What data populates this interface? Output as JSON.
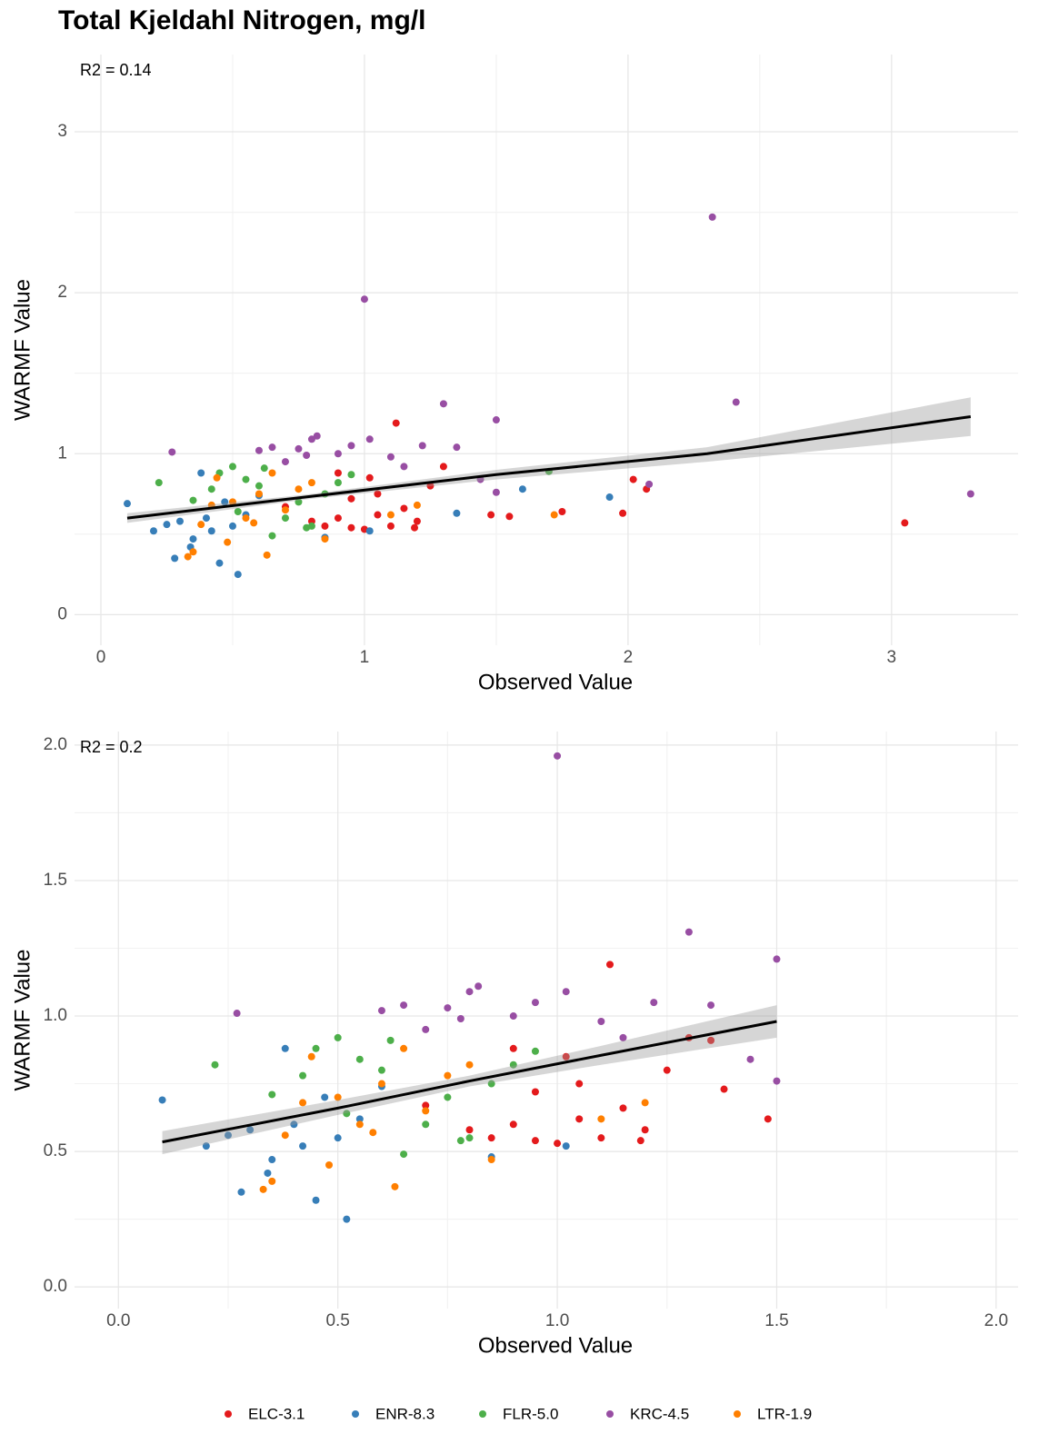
{
  "title": "Total Kjeldahl Nitrogen, mg/l",
  "chart_data": [
    {
      "type": "scatter",
      "annotation": "R2 = 0.14",
      "x_label": "Observed Value",
      "y_label": "WARMF Value",
      "xlim": [
        -0.1,
        3.48
      ],
      "ylim": [
        -0.19,
        3.48
      ],
      "xticks": [
        0,
        1,
        2,
        3
      ],
      "yticks": [
        0,
        1,
        2,
        3
      ],
      "grid": true,
      "trend": {
        "color": "#000000",
        "x": [
          0.1,
          0.8,
          1.5,
          2.3,
          3.3
        ],
        "fit": [
          0.6,
          0.735,
          0.87,
          1.0,
          1.23
        ],
        "lower": [
          0.57,
          0.72,
          0.84,
          0.95,
          1.11
        ],
        "upper": [
          0.63,
          0.75,
          0.9,
          1.04,
          1.35
        ]
      },
      "series": [
        {
          "name": "ELC-3.1",
          "color": "#e41a1c",
          "x": [
            0.8,
            0.85,
            0.9,
            0.95,
            1.0,
            1.02,
            1.05,
            1.1,
            1.12,
            1.15,
            1.2,
            1.25,
            1.3,
            1.05,
            0.9,
            0.95,
            1.48,
            1.55,
            1.75,
            1.98,
            2.02,
            2.07,
            3.05,
            0.7,
            1.19
          ],
          "values": [
            0.58,
            0.55,
            0.6,
            0.54,
            0.53,
            0.85,
            0.62,
            0.55,
            1.19,
            0.66,
            0.58,
            0.8,
            0.92,
            0.75,
            0.88,
            0.72,
            0.62,
            0.61,
            0.64,
            0.63,
            0.84,
            0.78,
            0.57,
            0.67,
            0.54
          ]
        },
        {
          "name": "ENR-8.3",
          "color": "#377eb8",
          "x": [
            0.1,
            0.2,
            0.25,
            0.28,
            0.3,
            0.35,
            0.38,
            0.4,
            0.42,
            0.45,
            0.5,
            0.52,
            0.47,
            0.55,
            0.6,
            0.85,
            1.02,
            1.35,
            1.6,
            1.93,
            0.34
          ],
          "values": [
            0.69,
            0.52,
            0.56,
            0.35,
            0.58,
            0.47,
            0.88,
            0.6,
            0.52,
            0.32,
            0.55,
            0.25,
            0.7,
            0.62,
            0.74,
            0.48,
            0.52,
            0.63,
            0.78,
            0.73,
            0.42
          ]
        },
        {
          "name": "FLR-5.0",
          "color": "#4daf4a",
          "x": [
            0.22,
            0.35,
            0.42,
            0.45,
            0.5,
            0.55,
            0.6,
            0.65,
            0.7,
            0.75,
            0.8,
            0.85,
            0.9,
            0.95,
            0.62,
            0.52,
            1.7,
            0.78
          ],
          "values": [
            0.82,
            0.71,
            0.78,
            0.88,
            0.92,
            0.84,
            0.8,
            0.49,
            0.6,
            0.7,
            0.55,
            0.75,
            0.82,
            0.87,
            0.91,
            0.64,
            0.89,
            0.54
          ]
        },
        {
          "name": "KRC-4.5",
          "color": "#984ea3",
          "x": [
            0.27,
            0.6,
            0.65,
            0.7,
            0.75,
            0.8,
            0.82,
            0.78,
            0.9,
            0.95,
            1.0,
            1.02,
            1.1,
            1.15,
            1.3,
            1.35,
            1.44,
            1.5,
            1.5,
            2.32,
            2.41,
            2.08,
            3.3,
            1.22
          ],
          "values": [
            1.01,
            1.02,
            1.04,
            0.95,
            1.03,
            1.09,
            1.11,
            0.99,
            1.0,
            1.05,
            1.96,
            1.09,
            0.98,
            0.92,
            1.31,
            1.04,
            0.84,
            1.21,
            0.76,
            2.47,
            1.32,
            0.81,
            0.75,
            1.05
          ]
        },
        {
          "name": "LTR-1.9",
          "color": "#ff7f00",
          "x": [
            0.33,
            0.35,
            0.38,
            0.42,
            0.44,
            0.48,
            0.5,
            0.55,
            0.6,
            0.63,
            0.65,
            0.7,
            0.75,
            0.8,
            0.85,
            1.1,
            1.2,
            1.72,
            0.58
          ],
          "values": [
            0.36,
            0.39,
            0.56,
            0.68,
            0.85,
            0.45,
            0.7,
            0.6,
            0.75,
            0.37,
            0.88,
            0.65,
            0.78,
            0.82,
            0.47,
            0.62,
            0.68,
            0.62,
            0.57
          ]
        }
      ]
    },
    {
      "type": "scatter",
      "annotation": "R2 = 0.2",
      "x_label": "Observed Value",
      "y_label": "WARMF Value",
      "xlim": [
        -0.1,
        2.05
      ],
      "ylim": [
        -0.08,
        2.05
      ],
      "xticks": [
        {
          "value": 0,
          "label": "0.0"
        },
        {
          "value": 0.5,
          "label": "0.5"
        },
        {
          "value": 1,
          "label": "1.0"
        },
        {
          "value": 1.5,
          "label": "1.5"
        },
        {
          "value": 2,
          "label": "2.0"
        }
      ],
      "yticks": [
        {
          "value": 0,
          "label": "0.0"
        },
        {
          "value": 0.5,
          "label": "0.5"
        },
        {
          "value": 1,
          "label": "1.0"
        },
        {
          "value": 1.5,
          "label": "1.5"
        },
        {
          "value": 2,
          "label": "2.0"
        }
      ],
      "grid": true,
      "trend": {
        "color": "#000000",
        "x": [
          0.1,
          0.5,
          0.8,
          1.1,
          1.5
        ],
        "fit": [
          0.535,
          0.66,
          0.76,
          0.855,
          0.98
        ],
        "lower": [
          0.49,
          0.635,
          0.74,
          0.82,
          0.92
        ],
        "upper": [
          0.575,
          0.69,
          0.78,
          0.89,
          1.04
        ]
      },
      "series": [
        {
          "color": "#e41a1c",
          "x": [
            0.8,
            0.85,
            0.9,
            0.95,
            1.0,
            1.02,
            1.05,
            1.1,
            1.12,
            1.15,
            1.2,
            1.25,
            1.3,
            1.05,
            0.9,
            0.95,
            1.48,
            0.7,
            1.19,
            1.38,
            1.35
          ],
          "values": [
            0.58,
            0.55,
            0.6,
            0.54,
            0.53,
            0.85,
            0.62,
            0.55,
            1.19,
            0.66,
            0.58,
            0.8,
            0.92,
            0.75,
            0.88,
            0.72,
            0.62,
            0.67,
            0.54,
            0.73,
            0.91
          ]
        },
        {
          "color": "#377eb8",
          "x": [
            0.1,
            0.2,
            0.25,
            0.28,
            0.3,
            0.35,
            0.38,
            0.4,
            0.42,
            0.45,
            0.5,
            0.52,
            0.47,
            0.55,
            0.6,
            0.85,
            1.02,
            0.34
          ],
          "values": [
            0.69,
            0.52,
            0.56,
            0.35,
            0.58,
            0.47,
            0.88,
            0.6,
            0.52,
            0.32,
            0.55,
            0.25,
            0.7,
            0.62,
            0.74,
            0.48,
            0.52,
            0.42
          ]
        },
        {
          "color": "#4daf4a",
          "x": [
            0.22,
            0.35,
            0.42,
            0.45,
            0.5,
            0.55,
            0.6,
            0.65,
            0.7,
            0.75,
            0.8,
            0.85,
            0.9,
            0.95,
            0.62,
            0.52,
            0.78
          ],
          "values": [
            0.82,
            0.71,
            0.78,
            0.88,
            0.92,
            0.84,
            0.8,
            0.49,
            0.6,
            0.7,
            0.55,
            0.75,
            0.82,
            0.87,
            0.91,
            0.64,
            0.54
          ]
        },
        {
          "color": "#984ea3",
          "x": [
            0.27,
            0.6,
            0.65,
            0.7,
            0.75,
            0.8,
            0.82,
            0.78,
            0.9,
            0.95,
            1.0,
            1.02,
            1.1,
            1.15,
            1.3,
            1.35,
            1.44,
            1.5,
            1.5,
            1.22
          ],
          "values": [
            1.01,
            1.02,
            1.04,
            0.95,
            1.03,
            1.09,
            1.11,
            0.99,
            1.0,
            1.05,
            1.96,
            1.09,
            0.98,
            0.92,
            1.31,
            1.04,
            0.84,
            1.21,
            0.76,
            1.05
          ]
        },
        {
          "color": "#ff7f00",
          "x": [
            0.33,
            0.35,
            0.38,
            0.42,
            0.44,
            0.48,
            0.5,
            0.55,
            0.6,
            0.63,
            0.65,
            0.7,
            0.75,
            0.8,
            0.85,
            1.1,
            1.2,
            0.58
          ],
          "values": [
            0.36,
            0.39,
            0.56,
            0.68,
            0.85,
            0.45,
            0.7,
            0.6,
            0.75,
            0.37,
            0.88,
            0.65,
            0.78,
            0.82,
            0.47,
            0.62,
            0.68,
            0.57
          ]
        }
      ]
    }
  ]
}
